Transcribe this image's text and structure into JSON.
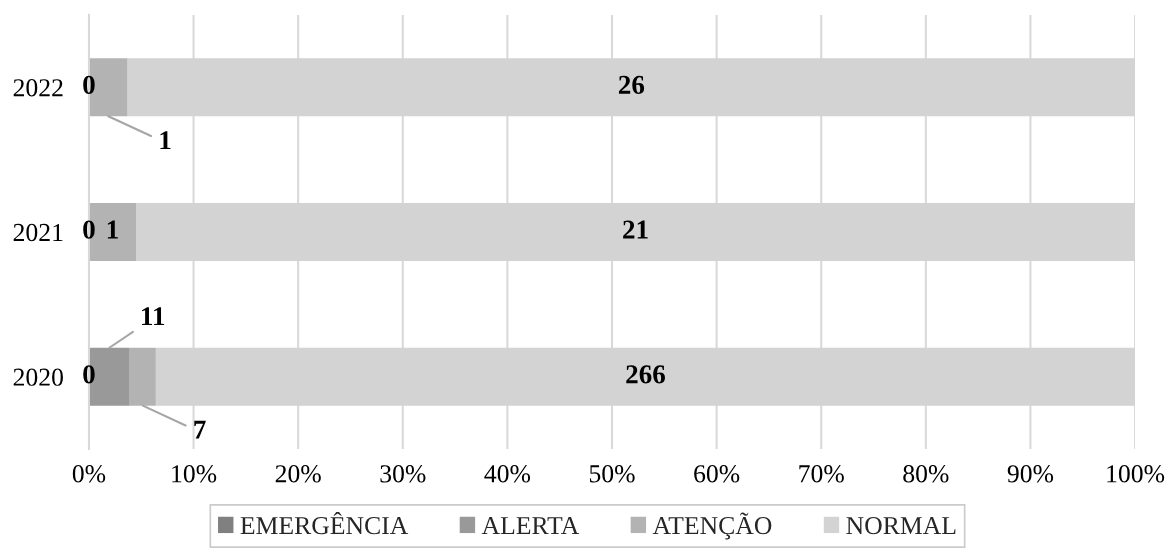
{
  "chart_data": {
    "type": "bar",
    "orientation": "horizontal",
    "stacked": true,
    "categories": [
      "2022",
      "2021",
      "2020"
    ],
    "series": [
      {
        "name": "EMERGÊNCIA",
        "color": "#808080",
        "values": [
          0,
          0,
          0
        ]
      },
      {
        "name": "ALERTA",
        "color": "#999999",
        "values": [
          0,
          0,
          3.9
        ]
      },
      {
        "name": "ATENÇÃO",
        "color": "#b3b3b3",
        "values": [
          3.7,
          4.5,
          2.5
        ]
      },
      {
        "name": "NORMAL",
        "color": "#d3d3d3",
        "values": [
          96.3,
          95.5,
          93.6
        ]
      }
    ],
    "annotations": [
      {
        "text": "0",
        "x": 0,
        "y": "2022"
      },
      {
        "text": "1",
        "x": 3.7,
        "y": "2022"
      },
      "26",
      {
        "text": "0",
        "x": 0,
        "y": "2021"
      },
      {
        "text": "1",
        "x": 4.5,
        "y": "2021"
      },
      "21",
      {
        "text": "0",
        "x": 0,
        "y": "2020"
      },
      {
        "text": "11",
        "x": 3.9,
        "y": "2020"
      },
      {
        "text": "7",
        "x": 6.4,
        "y": "2020"
      },
      "266"
    ],
    "xlim": [
      0,
      100
    ],
    "xticks": [
      {
        "value": 0,
        "label": "0%"
      },
      {
        "value": 10,
        "label": "10%"
      },
      {
        "value": 20,
        "label": "20%"
      },
      {
        "value": 30,
        "label": "30%"
      },
      {
        "value": 40,
        "label": "40%"
      },
      {
        "value": 50,
        "label": "50%"
      },
      {
        "value": 60,
        "label": "60%"
      },
      {
        "value": 70,
        "label": "70%"
      },
      {
        "value": 80,
        "label": "80%"
      },
      {
        "value": 90,
        "label": "90%"
      },
      {
        "value": 100,
        "label": "100%"
      }
    ],
    "grid": "x",
    "legend": "bottom"
  }
}
